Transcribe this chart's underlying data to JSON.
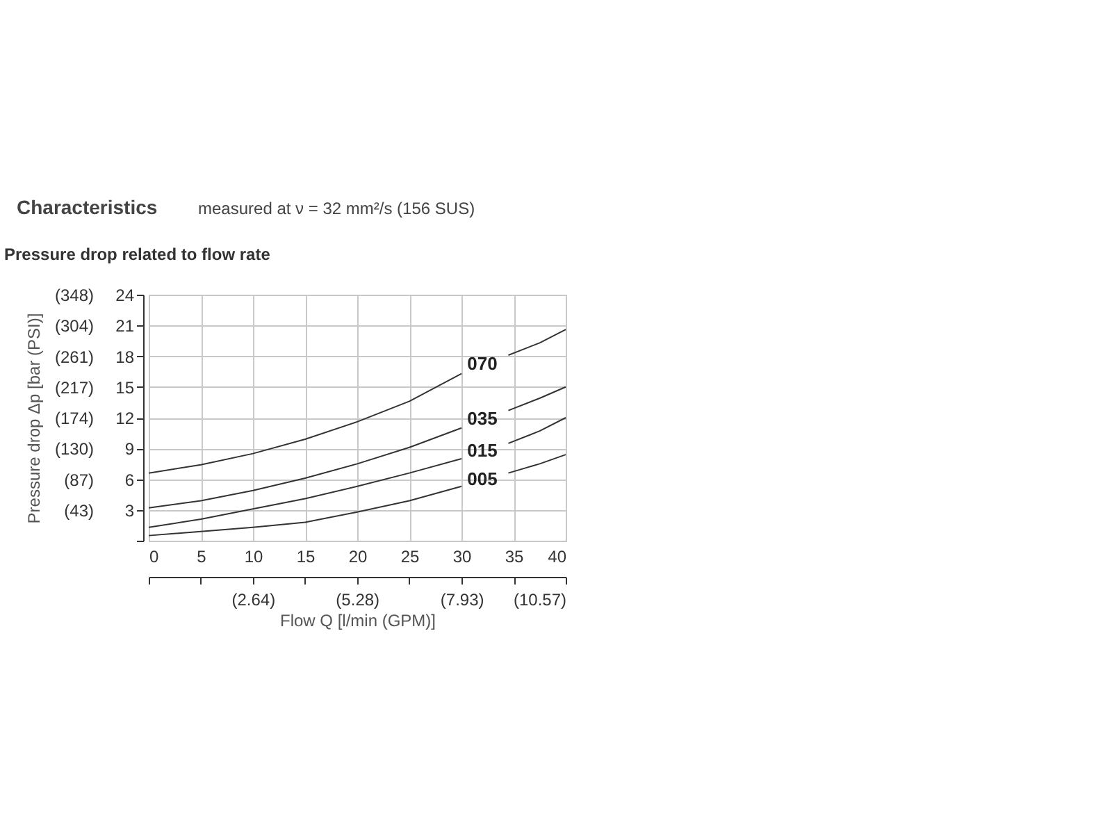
{
  "chart_data": {
    "type": "line",
    "title": "Characteristics",
    "subtitle": "measured at ν = 32 mm²/s (156 SUS)",
    "annotations": [
      "Pressure drop related to flow rate"
    ],
    "xlabel": "Flow Q [l/min (GPM)]",
    "y2label": "Pressure drop Δp [bar (PSI)]",
    "x": [
      0,
      5,
      10,
      15,
      20,
      25,
      30,
      32,
      34.5,
      37.5,
      40
    ],
    "series": [
      {
        "name": "070",
        "color": "#333333",
        "values": [
          6.6,
          7.4,
          8.5,
          9.9,
          11.6,
          13.6,
          16.3,
          null,
          18.1,
          19.3,
          20.6
        ]
      },
      {
        "name": "035",
        "color": "#333333",
        "values": [
          3.2,
          3.9,
          4.9,
          6.1,
          7.5,
          9.1,
          11.0,
          null,
          12.7,
          13.9,
          15.0
        ]
      },
      {
        "name": "015",
        "color": "#333333",
        "values": [
          1.3,
          2.1,
          3.1,
          4.1,
          5.3,
          6.6,
          8.0,
          null,
          9.5,
          10.7,
          12.0
        ]
      },
      {
        "name": "005",
        "color": "#333333",
        "values": [
          0.5,
          0.9,
          1.3,
          1.8,
          2.8,
          3.9,
          5.3,
          null,
          6.6,
          7.5,
          8.4
        ]
      }
    ],
    "xlim": [
      0,
      40
    ],
    "xticks": [
      0,
      5,
      10,
      15,
      20,
      25,
      30,
      35,
      40
    ],
    "ylim": [
      0,
      24
    ],
    "yticks": [
      {
        "value": 0,
        "label": null
      },
      3,
      6,
      9,
      12,
      15,
      18,
      21,
      24
    ],
    "y2lim": [
      0,
      348
    ],
    "y2ticks": [
      {
        "value": 43.5,
        "label": "(43)"
      },
      {
        "value": 87,
        "label": "(87)"
      },
      {
        "value": 130.5,
        "label": "(130)"
      },
      {
        "value": 174,
        "label": "(174)"
      },
      {
        "value": 217.5,
        "label": "(217)"
      },
      {
        "value": 261,
        "label": "(261)"
      },
      {
        "value": 304.5,
        "label": "(304)"
      },
      {
        "value": 348,
        "label": "(348)"
      }
    ],
    "x2lim": [
      0,
      10.57
    ],
    "x2ticks": [
      {
        "value": 0,
        "label": null
      },
      {
        "value": 1.32,
        "label": null
      },
      {
        "value": 2.64,
        "label": "(2.64)"
      },
      {
        "value": 3.96,
        "label": null
      },
      {
        "value": 5.28,
        "label": "(5.28)"
      },
      {
        "value": 6.6,
        "label": null
      },
      {
        "value": 7.93,
        "label": "(7.93)"
      },
      {
        "value": 9.25,
        "label": null
      },
      {
        "value": 10.57,
        "label": "(10.57)"
      }
    ],
    "grid": true,
    "marker": "none",
    "line_style": "solid"
  }
}
